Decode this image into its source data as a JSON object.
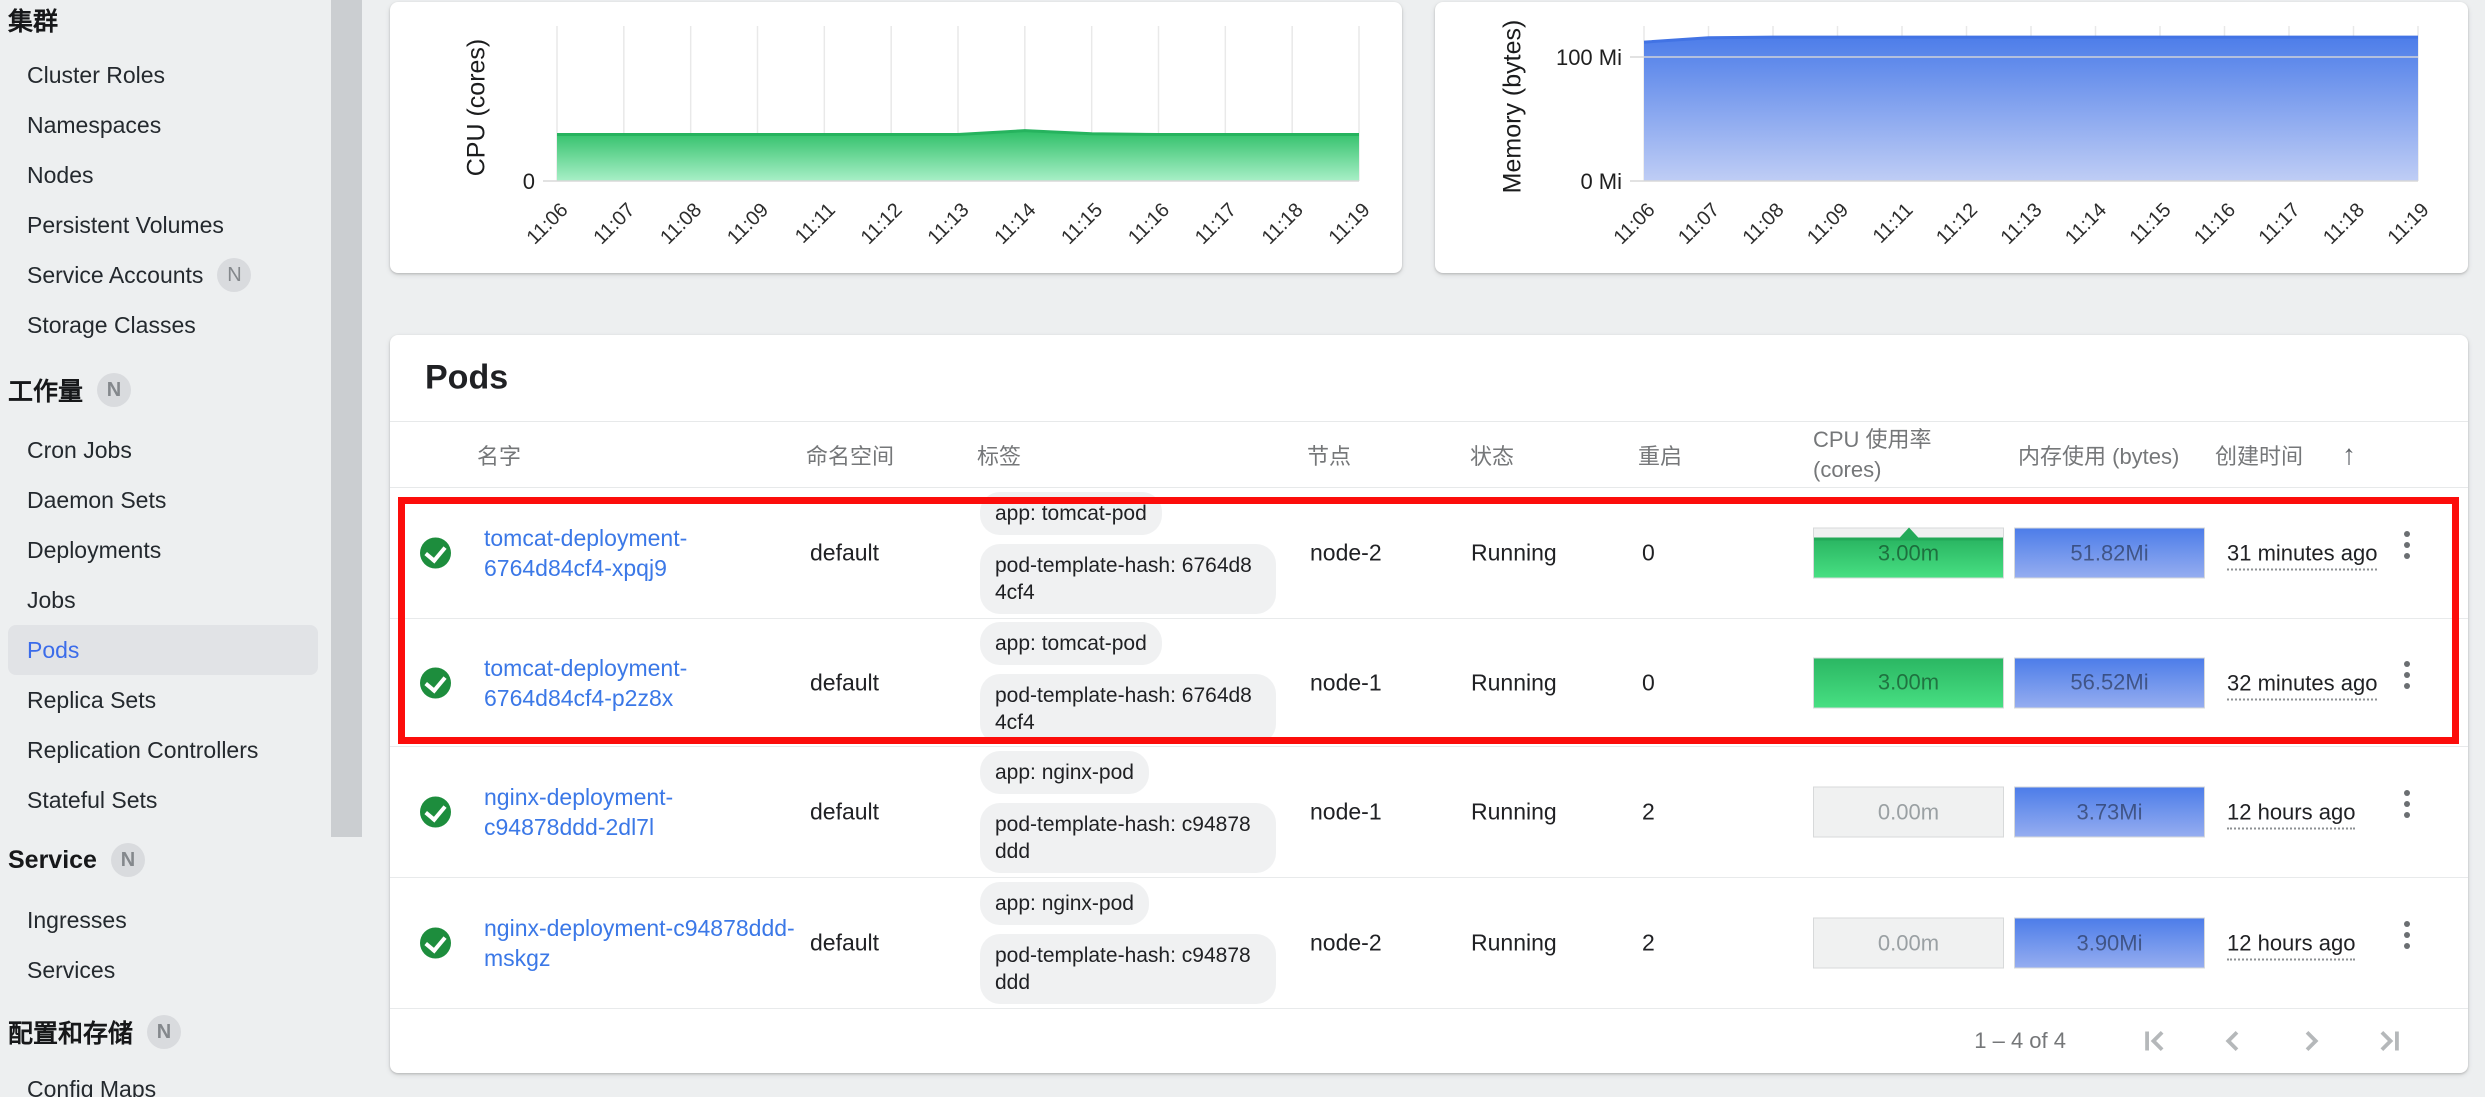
{
  "sidebar": {
    "sections": [
      {
        "label": "集群",
        "badge": "",
        "items": [
          {
            "label": "Cluster Roles"
          },
          {
            "label": "Namespaces"
          },
          {
            "label": "Nodes"
          },
          {
            "label": "Persistent Volumes"
          },
          {
            "label": "Service Accounts",
            "badge": "N"
          },
          {
            "label": "Storage Classes"
          }
        ]
      },
      {
        "label": "工作量",
        "badge": "N",
        "items": [
          {
            "label": "Cron Jobs"
          },
          {
            "label": "Daemon Sets"
          },
          {
            "label": "Deployments"
          },
          {
            "label": "Jobs"
          },
          {
            "label": "Pods",
            "selected": true
          },
          {
            "label": "Replica Sets"
          },
          {
            "label": "Replication Controllers"
          },
          {
            "label": "Stateful Sets"
          }
        ]
      },
      {
        "label": "Service",
        "badge": "N",
        "items": [
          {
            "label": "Ingresses"
          },
          {
            "label": "Services"
          }
        ]
      },
      {
        "label": "配置和存储",
        "badge": "N",
        "items": [
          {
            "label": "Config Maps"
          }
        ]
      }
    ]
  },
  "chart_data": [
    {
      "type": "area",
      "title": "",
      "ylabel": "CPU (cores)",
      "x": [
        "11:06",
        "11:07",
        "11:08",
        "11:09",
        "11:11",
        "11:12",
        "11:13",
        "11:14",
        "11:15",
        "11:16",
        "11:17",
        "11:18",
        "11:19"
      ],
      "values": [
        0.006,
        0.006,
        0.006,
        0.006,
        0.006,
        0.006,
        0.006,
        0.0065,
        0.0061,
        0.006,
        0.006,
        0.006,
        0.006
      ],
      "ylim": [
        0,
        0.02
      ],
      "yticks": [
        {
          "v": 0,
          "label": "0"
        }
      ],
      "grid": true,
      "legend": "none",
      "fill_top": "#2ebf67",
      "fill_bottom": "#a8efc7",
      "line": "#26b35e"
    },
    {
      "type": "area",
      "title": "",
      "ylabel": "Memory (bytes)",
      "x": [
        "11:06",
        "11:07",
        "11:08",
        "11:09",
        "11:11",
        "11:12",
        "11:13",
        "11:14",
        "11:15",
        "11:16",
        "11:17",
        "11:18",
        "11:19"
      ],
      "values": [
        112,
        115.5,
        116,
        116,
        116,
        116,
        116,
        116,
        116,
        116,
        116,
        116,
        116
      ],
      "ylim": [
        0,
        125
      ],
      "yticks": [
        {
          "v": 0,
          "label": "0 Mi"
        },
        {
          "v": 100,
          "label": "100 Mi"
        }
      ],
      "grid": true,
      "legend": "none",
      "fill_top": "#4d7de9",
      "fill_bottom": "#bfcdf5",
      "line": "#4273e4"
    }
  ],
  "pods": {
    "title": "Pods",
    "columns": {
      "name": "名字",
      "namespace": "命名空间",
      "labels": "标签",
      "node": "节点",
      "status": "状态",
      "restarts": "重启",
      "cpu_line1": "CPU 使用率",
      "cpu_line2": "(cores)",
      "memory": "内存使用 (bytes)",
      "created": "创建时间",
      "sort_arrow": "↑"
    },
    "rows": [
      {
        "name_line1": "tomcat-deployment-",
        "name_line2": "6764d84cf4-xpqj9",
        "namespace": "default",
        "label_app": "app: tomcat-pod",
        "label_hash": "pod-template-hash: 6764d84cf4",
        "node": "node-2",
        "status": "Running",
        "restarts": "0",
        "cpu": "3.00m",
        "memory": "51.82Mi",
        "created": "31 minutes ago",
        "cpu_kind": "spike",
        "highlighted": true
      },
      {
        "name_line1": "tomcat-deployment-",
        "name_line2": "6764d84cf4-p2z8x",
        "namespace": "default",
        "label_app": "app: tomcat-pod",
        "label_hash": "pod-template-hash: 6764d84cf4",
        "node": "node-1",
        "status": "Running",
        "restarts": "0",
        "cpu": "3.00m",
        "memory": "56.52Mi",
        "created": "32 minutes ago",
        "cpu_kind": "full",
        "highlighted": true
      },
      {
        "name_line1": "nginx-deployment-",
        "name_line2": "c94878ddd-2dl7l",
        "namespace": "default",
        "label_app": "app: nginx-pod",
        "label_hash": "pod-template-hash: c94878ddd",
        "node": "node-1",
        "status": "Running",
        "restarts": "2",
        "cpu": "0.00m",
        "memory": "3.73Mi",
        "created": "12 hours ago",
        "cpu_kind": "zero",
        "highlighted": false
      },
      {
        "name_line1": "nginx-deployment-c94878ddd-",
        "name_line2": "mskgz",
        "namespace": "default",
        "label_app": "app: nginx-pod",
        "label_hash": "pod-template-hash: c94878ddd",
        "node": "node-2",
        "status": "Running",
        "restarts": "2",
        "cpu": "0.00m",
        "memory": "3.90Mi",
        "created": "12 hours ago",
        "cpu_kind": "zero",
        "highlighted": false
      }
    ],
    "pagination": {
      "range": "1 – 4 of 4"
    }
  },
  "annotation": {
    "type": "highlight-box",
    "color": "#fc0d0b",
    "rows_highlighted": [
      0,
      1
    ]
  }
}
